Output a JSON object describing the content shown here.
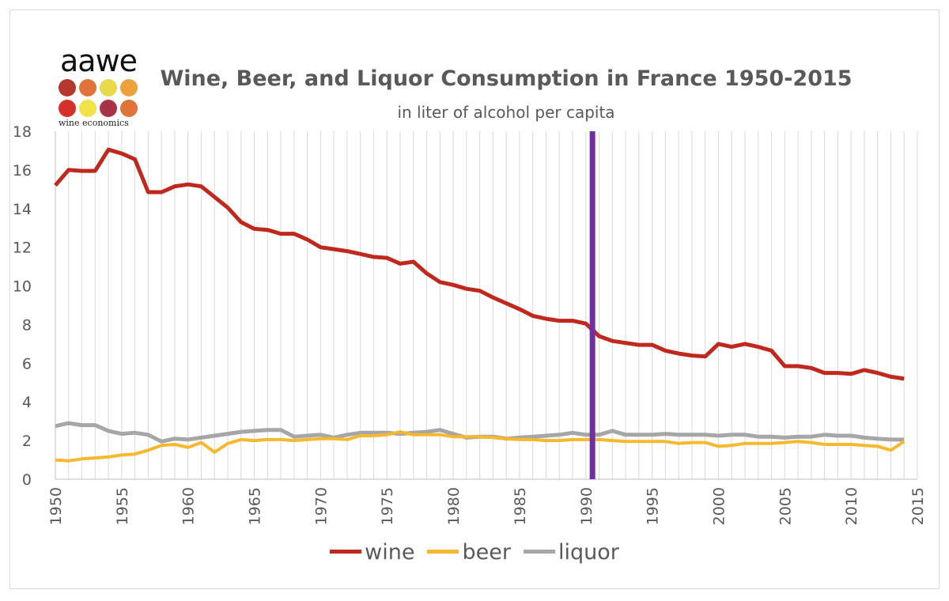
{
  "logo": {
    "word": "aawe",
    "subtitle": "wine economics",
    "dot_colors": [
      "#b5382f",
      "#e0733a",
      "#e8d94a",
      "#eda13a",
      "#d6302c",
      "#f2e24a",
      "#a8324a",
      "#e0733a"
    ]
  },
  "chart_data": {
    "type": "line",
    "title": "Wine, Beer, and Liquor Consumption in France 1950-2015",
    "subtitle": "in liter of alcohol per capita",
    "xlabel": "",
    "ylabel": "",
    "xlim": [
      1950,
      2015
    ],
    "ylim": [
      0,
      18
    ],
    "yticks": [
      0,
      2,
      4,
      6,
      8,
      10,
      12,
      14,
      16,
      18
    ],
    "xticks": [
      1950,
      1955,
      1960,
      1965,
      1970,
      1975,
      1980,
      1985,
      1990,
      1995,
      2000,
      2005,
      2010,
      2015
    ],
    "grid": "vertical gridlines every year",
    "legend_position": "bottom",
    "marker_line": {
      "x": 1990.5,
      "color": "#7030a0"
    },
    "x": [
      1950,
      1951,
      1952,
      1953,
      1954,
      1955,
      1956,
      1957,
      1958,
      1959,
      1960,
      1961,
      1962,
      1963,
      1964,
      1965,
      1966,
      1967,
      1968,
      1969,
      1970,
      1971,
      1972,
      1973,
      1974,
      1975,
      1976,
      1977,
      1978,
      1979,
      1980,
      1981,
      1982,
      1983,
      1984,
      1985,
      1986,
      1987,
      1988,
      1989,
      1990,
      1991,
      1992,
      1993,
      1994,
      1995,
      1996,
      1997,
      1998,
      1999,
      2000,
      2001,
      2002,
      2003,
      2004,
      2005,
      2006,
      2007,
      2008,
      2009,
      2010,
      2011,
      2012,
      2013,
      2014
    ],
    "series": [
      {
        "name": "wine",
        "color": "#c0281e",
        "width": 5,
        "values": [
          15.2,
          16.0,
          15.95,
          15.95,
          17.05,
          16.85,
          16.55,
          14.85,
          14.85,
          15.15,
          15.25,
          15.15,
          14.6,
          14.05,
          13.3,
          12.95,
          12.9,
          12.7,
          12.7,
          12.4,
          12.0,
          11.9,
          11.8,
          11.65,
          11.5,
          11.45,
          11.15,
          11.25,
          10.65,
          10.2,
          10.05,
          9.85,
          9.75,
          9.4,
          9.1,
          8.8,
          8.45,
          8.3,
          8.2,
          8.2,
          8.05,
          7.4,
          7.15,
          7.05,
          6.95,
          6.95,
          6.65,
          6.5,
          6.4,
          6.35,
          7.0,
          6.85,
          7.0,
          6.85,
          6.65,
          5.85,
          5.85,
          5.75,
          5.5,
          5.5,
          5.45,
          5.65,
          5.5,
          5.3,
          5.2
        ]
      },
      {
        "name": "beer",
        "color": "#f5b82e",
        "width": 4,
        "values": [
          1.0,
          0.95,
          1.05,
          1.1,
          1.15,
          1.25,
          1.3,
          1.5,
          1.75,
          1.8,
          1.65,
          1.9,
          1.4,
          1.85,
          2.05,
          2.0,
          2.05,
          2.05,
          2.0,
          2.05,
          2.1,
          2.1,
          2.05,
          2.25,
          2.25,
          2.3,
          2.45,
          2.3,
          2.3,
          2.3,
          2.2,
          2.2,
          2.2,
          2.15,
          2.1,
          2.05,
          2.05,
          2.0,
          2.0,
          2.05,
          2.05,
          2.05,
          2.0,
          1.95,
          1.95,
          1.95,
          1.95,
          1.85,
          1.9,
          1.9,
          1.7,
          1.75,
          1.85,
          1.85,
          1.85,
          1.9,
          1.95,
          1.9,
          1.8,
          1.8,
          1.8,
          1.75,
          1.7,
          1.5,
          1.95
        ]
      },
      {
        "name": "liquor",
        "color": "#a6a6a6",
        "width": 5,
        "values": [
          2.75,
          2.9,
          2.8,
          2.8,
          2.5,
          2.35,
          2.4,
          2.3,
          1.95,
          2.1,
          2.05,
          2.15,
          2.25,
          2.35,
          2.45,
          2.5,
          2.55,
          2.55,
          2.2,
          2.25,
          2.3,
          2.15,
          2.3,
          2.4,
          2.4,
          2.4,
          2.35,
          2.4,
          2.45,
          2.55,
          2.35,
          2.15,
          2.2,
          2.2,
          2.1,
          2.15,
          2.2,
          2.25,
          2.3,
          2.4,
          2.3,
          2.3,
          2.5,
          2.3,
          2.3,
          2.3,
          2.35,
          2.3,
          2.3,
          2.3,
          2.25,
          2.3,
          2.3,
          2.2,
          2.2,
          2.15,
          2.2,
          2.2,
          2.3,
          2.25,
          2.25,
          2.15,
          2.1,
          2.05,
          2.05
        ]
      }
    ]
  }
}
